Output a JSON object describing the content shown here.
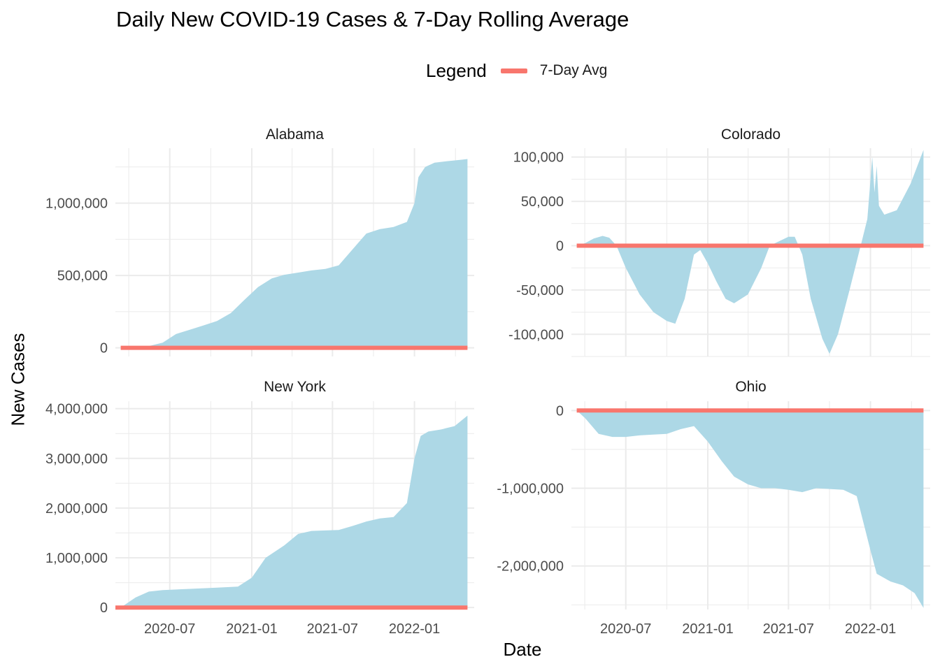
{
  "title": "Daily New COVID-19 Cases & 7-Day Rolling Average",
  "legend": {
    "title": "Legend",
    "label": "7-Day Avg",
    "color": "#f8766d"
  },
  "xlabel": "Date",
  "ylabel": "New Cases",
  "colors": {
    "area": "#add8e6",
    "avg_line": "#f8766d",
    "grid": "#ebebeb",
    "tick_text": "#4d4d4d"
  },
  "chart_data": {
    "type": "area",
    "facets_layout": "2x2",
    "x_axis": {
      "type": "date",
      "range": [
        "2020-03-01",
        "2022-05-15"
      ],
      "ticks": [
        "2020-07-01",
        "2021-01-01",
        "2021-07-01",
        "2022-01-01"
      ],
      "tick_labels": [
        "2020-07",
        "2021-01",
        "2021-07",
        "2022-01"
      ]
    },
    "grid": true,
    "legend_position": "top",
    "series_names": [
      "7-Day Avg"
    ],
    "panels": [
      {
        "name": "Alabama",
        "ylim": [
          -60000,
          1380000
        ],
        "yticks": [
          0,
          500000,
          1000000
        ],
        "ytick_labels": [
          "0",
          "500,000",
          "1,000,000"
        ],
        "area_points": [
          [
            "2020-03-13",
            0
          ],
          [
            "2020-04-15",
            2000
          ],
          [
            "2020-05-15",
            12000
          ],
          [
            "2020-06-15",
            35000
          ],
          [
            "2020-07-15",
            95000
          ],
          [
            "2020-08-15",
            125000
          ],
          [
            "2020-09-15",
            155000
          ],
          [
            "2020-10-15",
            185000
          ],
          [
            "2020-11-15",
            240000
          ],
          [
            "2020-12-15",
            330000
          ],
          [
            "2021-01-15",
            420000
          ],
          [
            "2021-02-15",
            480000
          ],
          [
            "2021-03-15",
            505000
          ],
          [
            "2021-04-15",
            520000
          ],
          [
            "2021-05-15",
            535000
          ],
          [
            "2021-06-15",
            545000
          ],
          [
            "2021-07-15",
            570000
          ],
          [
            "2021-08-15",
            680000
          ],
          [
            "2021-09-15",
            790000
          ],
          [
            "2021-10-15",
            820000
          ],
          [
            "2021-11-15",
            835000
          ],
          [
            "2021-12-15",
            870000
          ],
          [
            "2022-01-01",
            1000000
          ],
          [
            "2022-01-10",
            1180000
          ],
          [
            "2022-01-25",
            1250000
          ],
          [
            "2022-02-15",
            1280000
          ],
          [
            "2022-03-15",
            1290000
          ],
          [
            "2022-04-15",
            1300000
          ],
          [
            "2022-04-30",
            1305000
          ]
        ],
        "avg_line": [
          [
            "2020-03-13",
            0
          ],
          [
            "2022-04-30",
            0
          ]
        ]
      },
      {
        "name": "Colorado",
        "ylim": [
          -125000,
          110000
        ],
        "yticks": [
          -100000,
          -50000,
          0,
          50000,
          100000
        ],
        "ytick_labels": [
          "-100,000",
          "-50,000",
          "0",
          "50,000",
          "100,000"
        ],
        "area_points": [
          [
            "2020-03-13",
            0
          ],
          [
            "2020-04-01",
            3000
          ],
          [
            "2020-04-20",
            8000
          ],
          [
            "2020-05-10",
            11000
          ],
          [
            "2020-05-25",
            9000
          ],
          [
            "2020-06-10",
            0
          ],
          [
            "2020-07-01",
            -25000
          ],
          [
            "2020-08-01",
            -55000
          ],
          [
            "2020-09-01",
            -75000
          ],
          [
            "2020-10-01",
            -85000
          ],
          [
            "2020-10-20",
            -88000
          ],
          [
            "2020-11-10",
            -60000
          ],
          [
            "2020-12-01",
            -10000
          ],
          [
            "2020-12-15",
            -5000
          ],
          [
            "2021-01-01",
            -20000
          ],
          [
            "2021-01-20",
            -40000
          ],
          [
            "2021-02-10",
            -60000
          ],
          [
            "2021-03-01",
            -65000
          ],
          [
            "2021-04-01",
            -55000
          ],
          [
            "2021-05-01",
            -25000
          ],
          [
            "2021-05-20",
            0
          ],
          [
            "2021-06-10",
            5000
          ],
          [
            "2021-07-01",
            10000
          ],
          [
            "2021-07-15",
            10000
          ],
          [
            "2021-08-01",
            -10000
          ],
          [
            "2021-08-20",
            -60000
          ],
          [
            "2021-09-15",
            -105000
          ],
          [
            "2021-10-01",
            -122000
          ],
          [
            "2021-10-20",
            -100000
          ],
          [
            "2021-11-15",
            -50000
          ],
          [
            "2021-12-15",
            10000
          ],
          [
            "2021-12-25",
            30000
          ],
          [
            "2022-01-05",
            100000
          ],
          [
            "2022-01-10",
            60000
          ],
          [
            "2022-01-15",
            90000
          ],
          [
            "2022-01-20",
            45000
          ],
          [
            "2022-02-01",
            35000
          ],
          [
            "2022-03-01",
            40000
          ],
          [
            "2022-04-01",
            70000
          ],
          [
            "2022-04-30",
            108000
          ]
        ],
        "avg_line": [
          [
            "2020-03-13",
            0
          ],
          [
            "2022-04-30",
            0
          ]
        ]
      },
      {
        "name": "New York",
        "ylim": [
          -40000,
          4150000
        ],
        "yticks": [
          0,
          1000000,
          2000000,
          3000000,
          4000000
        ],
        "ytick_labels": [
          "0",
          "1,000,000",
          "2,000,000",
          "3,000,000",
          "4,000,000"
        ],
        "area_points": [
          [
            "2020-03-01",
            0
          ],
          [
            "2020-03-15",
            10000
          ],
          [
            "2020-04-15",
            200000
          ],
          [
            "2020-05-15",
            320000
          ],
          [
            "2020-06-15",
            350000
          ],
          [
            "2020-08-15",
            375000
          ],
          [
            "2020-10-15",
            400000
          ],
          [
            "2020-12-01",
            420000
          ],
          [
            "2021-01-01",
            600000
          ],
          [
            "2021-02-01",
            1000000
          ],
          [
            "2021-03-15",
            1250000
          ],
          [
            "2021-04-15",
            1480000
          ],
          [
            "2021-05-15",
            1540000
          ],
          [
            "2021-06-15",
            1550000
          ],
          [
            "2021-07-15",
            1560000
          ],
          [
            "2021-08-15",
            1640000
          ],
          [
            "2021-09-15",
            1730000
          ],
          [
            "2021-10-15",
            1790000
          ],
          [
            "2021-11-15",
            1820000
          ],
          [
            "2021-12-15",
            2100000
          ],
          [
            "2022-01-01",
            3000000
          ],
          [
            "2022-01-15",
            3450000
          ],
          [
            "2022-02-01",
            3540000
          ],
          [
            "2022-03-01",
            3580000
          ],
          [
            "2022-04-01",
            3650000
          ],
          [
            "2022-04-30",
            3860000
          ]
        ],
        "avg_line": [
          [
            "2020-03-01",
            0
          ],
          [
            "2022-04-30",
            0
          ]
        ]
      },
      {
        "name": "Ohio",
        "ylim": [
          -2560000,
          120000
        ],
        "yticks": [
          -2000000,
          -1000000,
          0
        ],
        "ytick_labels": [
          "-2,000,000",
          "-1,000,000",
          "0"
        ],
        "area_points": [
          [
            "2020-03-13",
            0
          ],
          [
            "2020-04-01",
            -100000
          ],
          [
            "2020-05-01",
            -300000
          ],
          [
            "2020-06-01",
            -340000
          ],
          [
            "2020-07-01",
            -340000
          ],
          [
            "2020-08-01",
            -320000
          ],
          [
            "2020-09-01",
            -310000
          ],
          [
            "2020-10-01",
            -300000
          ],
          [
            "2020-11-01",
            -240000
          ],
          [
            "2020-12-01",
            -200000
          ],
          [
            "2021-01-01",
            -400000
          ],
          [
            "2021-02-01",
            -650000
          ],
          [
            "2021-03-01",
            -850000
          ],
          [
            "2021-04-01",
            -950000
          ],
          [
            "2021-05-01",
            -1000000
          ],
          [
            "2021-06-01",
            -1000000
          ],
          [
            "2021-07-01",
            -1020000
          ],
          [
            "2021-08-01",
            -1050000
          ],
          [
            "2021-09-01",
            -1000000
          ],
          [
            "2021-10-01",
            -1010000
          ],
          [
            "2021-11-01",
            -1020000
          ],
          [
            "2021-12-01",
            -1100000
          ],
          [
            "2022-01-01",
            -1800000
          ],
          [
            "2022-01-15",
            -2100000
          ],
          [
            "2022-02-15",
            -2200000
          ],
          [
            "2022-03-15",
            -2250000
          ],
          [
            "2022-04-10",
            -2350000
          ],
          [
            "2022-04-30",
            -2540000
          ]
        ],
        "avg_line": [
          [
            "2020-03-13",
            0
          ],
          [
            "2022-04-30",
            0
          ]
        ]
      }
    ]
  }
}
